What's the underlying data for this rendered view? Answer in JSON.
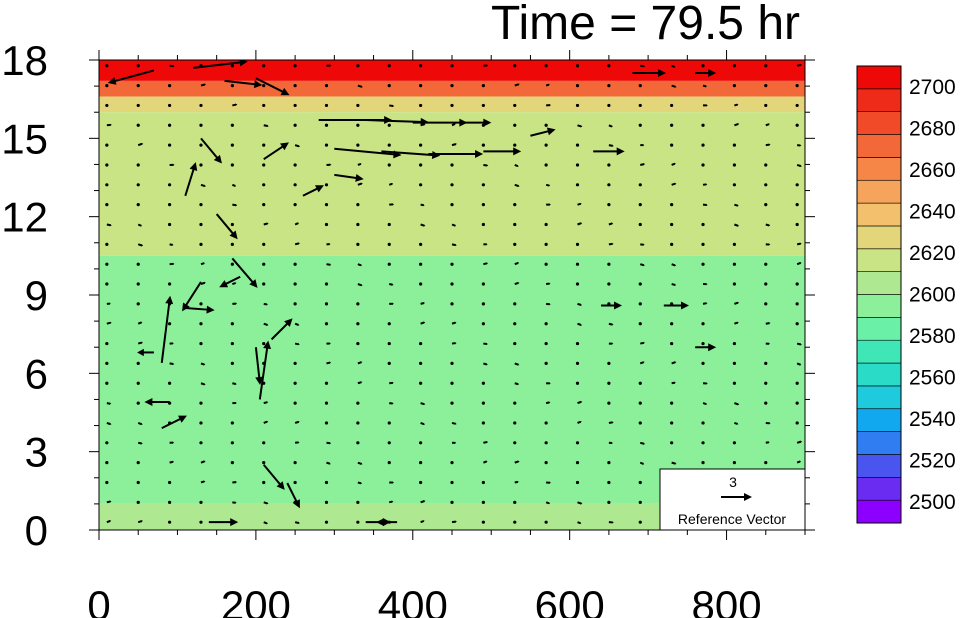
{
  "chart_data": {
    "type": "heatmap",
    "title": "Time = 79.5 hr",
    "xlim": [
      0,
      900
    ],
    "ylim": [
      0,
      18
    ],
    "xticks": [
      "0",
      "200",
      "400",
      "600",
      "800"
    ],
    "xtick_values": [
      0,
      200,
      400,
      600,
      800
    ],
    "yticks": [
      "0",
      "3",
      "6",
      "9",
      "12",
      "15",
      "18"
    ],
    "ytick_values": [
      0,
      3,
      6,
      9,
      12,
      15,
      18
    ],
    "colorbar": {
      "labels": [
        "2700",
        "2680",
        "2660",
        "2640",
        "2620",
        "2600",
        "2580",
        "2560",
        "2540",
        "2520",
        "2500"
      ],
      "label_values": [
        2700,
        2680,
        2660,
        2640,
        2620,
        2600,
        2580,
        2560,
        2540,
        2520,
        2500
      ],
      "range": [
        2490,
        2710
      ],
      "colors": [
        "#8b00ff",
        "#6a2cf0",
        "#4a55f0",
        "#2f7df0",
        "#12a8f0",
        "#1fcadd",
        "#2adcc8",
        "#3fe6b6",
        "#6bf0a8",
        "#8cf09a",
        "#aee890",
        "#c8e485",
        "#e2d57a",
        "#f3c16e",
        "#f6a35c",
        "#f58648",
        "#f36838",
        "#f04a28",
        "#ee2a18",
        "#ee0808"
      ]
    },
    "field_bands": [
      {
        "y_range": [
          17.2,
          18
        ],
        "value": 2705
      },
      {
        "y_range": [
          16.6,
          17.2
        ],
        "value": 2672
      },
      {
        "y_range": [
          16.0,
          16.6
        ],
        "value": 2630
      },
      {
        "y_range": [
          10.5,
          16.0
        ],
        "value": 2612
      },
      {
        "y_range": [
          1.0,
          10.5
        ],
        "value": 2592
      },
      {
        "y_range": [
          0,
          1.0
        ],
        "value": 2605
      }
    ],
    "reference_vector": {
      "magnitude": "3",
      "label": "Reference Vector"
    },
    "vector_grid": {
      "x_start": 10,
      "x_step": 40,
      "y_start": 0.3,
      "y_step": 0.76
    },
    "vectors": [
      {
        "x": 70,
        "y": 17.6,
        "u": -2.2,
        "v": -0.6
      },
      {
        "x": 120,
        "y": 17.7,
        "u": 2.6,
        "v": 0.3
      },
      {
        "x": 160,
        "y": 17.2,
        "u": 1.8,
        "v": -0.2
      },
      {
        "x": 200,
        "y": 17.3,
        "u": 1.6,
        "v": -0.8
      },
      {
        "x": 280,
        "y": 15.7,
        "u": 3.5,
        "v": 0.0
      },
      {
        "x": 340,
        "y": 15.7,
        "u": 3.0,
        "v": -0.1
      },
      {
        "x": 400,
        "y": 15.6,
        "u": 2.6,
        "v": 0.0
      },
      {
        "x": 460,
        "y": 15.6,
        "u": 1.5,
        "v": 0.0
      },
      {
        "x": 300,
        "y": 14.6,
        "u": 3.2,
        "v": -0.3
      },
      {
        "x": 360,
        "y": 14.5,
        "u": 2.8,
        "v": -0.2
      },
      {
        "x": 420,
        "y": 14.4,
        "u": 2.6,
        "v": 0.0
      },
      {
        "x": 490,
        "y": 14.5,
        "u": 1.8,
        "v": 0.0
      },
      {
        "x": 550,
        "y": 15.1,
        "u": 1.2,
        "v": 0.3
      },
      {
        "x": 630,
        "y": 14.5,
        "u": 1.5,
        "v": 0.0
      },
      {
        "x": 210,
        "y": 14.2,
        "u": 1.2,
        "v": 0.8
      },
      {
        "x": 130,
        "y": 15.0,
        "u": 1.0,
        "v": -1.2
      },
      {
        "x": 110,
        "y": 12.8,
        "u": 0.5,
        "v": 1.6
      },
      {
        "x": 150,
        "y": 12.1,
        "u": 1.0,
        "v": -1.2
      },
      {
        "x": 170,
        "y": 10.4,
        "u": 1.2,
        "v": -1.4
      },
      {
        "x": 130,
        "y": 9.5,
        "u": -0.9,
        "v": -1.4
      },
      {
        "x": 80,
        "y": 6.4,
        "u": 0.4,
        "v": 3.2
      },
      {
        "x": 110,
        "y": 8.5,
        "u": 1.4,
        "v": -0.1
      },
      {
        "x": 180,
        "y": 9.7,
        "u": -1.0,
        "v": -0.5
      },
      {
        "x": 200,
        "y": 7.0,
        "u": 0.2,
        "v": -1.8
      },
      {
        "x": 205,
        "y": 5.0,
        "u": 0.4,
        "v": 2.8
      },
      {
        "x": 220,
        "y": 7.3,
        "u": 1.0,
        "v": 1.0
      },
      {
        "x": 80,
        "y": 3.9,
        "u": 1.2,
        "v": 0.6
      },
      {
        "x": 90,
        "y": 4.9,
        "u": -1.2,
        "v": 0.0
      },
      {
        "x": 210,
        "y": 2.5,
        "u": 1.0,
        "v": -1.2
      },
      {
        "x": 240,
        "y": 1.8,
        "u": 0.6,
        "v": -1.2
      },
      {
        "x": 70,
        "y": 6.8,
        "u": -0.8,
        "v": 0.0
      },
      {
        "x": 300,
        "y": 13.6,
        "u": 1.4,
        "v": -0.2
      },
      {
        "x": 260,
        "y": 12.8,
        "u": 1.0,
        "v": 0.5
      },
      {
        "x": 640,
        "y": 8.6,
        "u": 1.0,
        "v": 0.0
      },
      {
        "x": 720,
        "y": 8.6,
        "u": 1.2,
        "v": 0.0
      },
      {
        "x": 760,
        "y": 7.0,
        "u": 1.0,
        "v": 0.0
      },
      {
        "x": 680,
        "y": 17.5,
        "u": 1.6,
        "v": 0.0
      },
      {
        "x": 760,
        "y": 17.5,
        "u": 1.0,
        "v": 0.0
      },
      {
        "x": 140,
        "y": 0.3,
        "u": 1.4,
        "v": 0.0
      },
      {
        "x": 340,
        "y": 0.3,
        "u": 1.2,
        "v": 0.0
      },
      {
        "x": 380,
        "y": 0.3,
        "u": -1.0,
        "v": 0.0
      }
    ]
  },
  "colors": {
    "background": "#ffffff",
    "ink": "#000000"
  }
}
